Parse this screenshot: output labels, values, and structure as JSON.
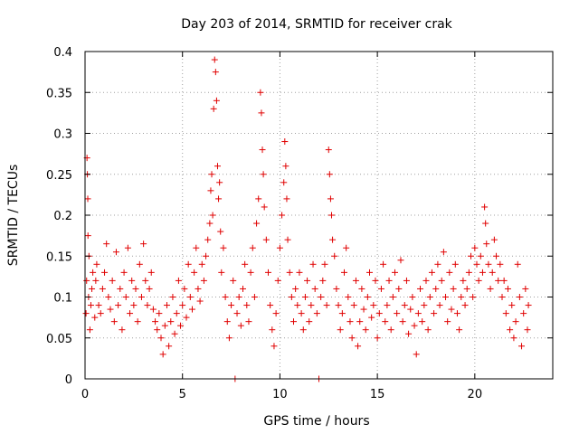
{
  "chart_data": {
    "type": "scatter",
    "title": "Day 203 of 2014, SRMTID for receiver crak",
    "xlabel": "GPS time / hours",
    "ylabel": "SRMTID / TECUs",
    "xlim": [
      0,
      24
    ],
    "ylim": [
      0,
      0.4
    ],
    "xticks": [
      0,
      5,
      10,
      15,
      20
    ],
    "yticks": [
      0,
      0.05,
      0.1,
      0.15,
      0.2,
      0.25,
      0.3,
      0.35,
      0.4
    ],
    "xtick_labels": [
      "0",
      "5",
      "10",
      "15",
      "20"
    ],
    "ytick_labels": [
      "0",
      "0.05",
      "0.1",
      "0.15",
      "0.2",
      "0.25",
      "0.3",
      "0.35",
      "0.4"
    ],
    "grid": true,
    "marker": "+",
    "color": "#e00000",
    "series": [
      {
        "name": "SRMTID",
        "points": [
          [
            0.05,
            0.08
          ],
          [
            0.08,
            0.12
          ],
          [
            0.1,
            0.27
          ],
          [
            0.12,
            0.25
          ],
          [
            0.14,
            0.22
          ],
          [
            0.15,
            0.175
          ],
          [
            0.18,
            0.1
          ],
          [
            0.2,
            0.15
          ],
          [
            0.25,
            0.06
          ],
          [
            0.3,
            0.09
          ],
          [
            0.35,
            0.11
          ],
          [
            0.4,
            0.13
          ],
          [
            0.5,
            0.075
          ],
          [
            0.55,
            0.12
          ],
          [
            0.6,
            0.14
          ],
          [
            0.7,
            0.09
          ],
          [
            0.8,
            0.08
          ],
          [
            0.9,
            0.11
          ],
          [
            1.0,
            0.13
          ],
          [
            1.1,
            0.165
          ],
          [
            1.2,
            0.1
          ],
          [
            1.3,
            0.085
          ],
          [
            1.4,
            0.12
          ],
          [
            1.5,
            0.07
          ],
          [
            1.6,
            0.155
          ],
          [
            1.7,
            0.09
          ],
          [
            1.8,
            0.11
          ],
          [
            1.9,
            0.06
          ],
          [
            2.0,
            0.13
          ],
          [
            2.1,
            0.1
          ],
          [
            2.2,
            0.16
          ],
          [
            2.3,
            0.08
          ],
          [
            2.4,
            0.12
          ],
          [
            2.5,
            0.09
          ],
          [
            2.6,
            0.11
          ],
          [
            2.7,
            0.07
          ],
          [
            2.8,
            0.14
          ],
          [
            2.9,
            0.1
          ],
          [
            3.0,
            0.165
          ],
          [
            3.1,
            0.12
          ],
          [
            3.2,
            0.09
          ],
          [
            3.3,
            0.11
          ],
          [
            3.4,
            0.13
          ],
          [
            3.5,
            0.085
          ],
          [
            3.6,
            0.07
          ],
          [
            3.7,
            0.06
          ],
          [
            3.8,
            0.08
          ],
          [
            3.9,
            0.05
          ],
          [
            4.0,
            0.03
          ],
          [
            4.1,
            0.065
          ],
          [
            4.2,
            0.09
          ],
          [
            4.3,
            0.04
          ],
          [
            4.4,
            0.07
          ],
          [
            4.5,
            0.1
          ],
          [
            4.6,
            0.055
          ],
          [
            4.7,
            0.08
          ],
          [
            4.8,
            0.12
          ],
          [
            4.9,
            0.065
          ],
          [
            5.0,
            0.09
          ],
          [
            5.1,
            0.11
          ],
          [
            5.2,
            0.075
          ],
          [
            5.3,
            0.14
          ],
          [
            5.4,
            0.1
          ],
          [
            5.5,
            0.085
          ],
          [
            5.6,
            0.13
          ],
          [
            5.7,
            0.16
          ],
          [
            5.8,
            0.11
          ],
          [
            5.9,
            0.095
          ],
          [
            6.0,
            0.14
          ],
          [
            6.1,
            0.12
          ],
          [
            6.2,
            0.15
          ],
          [
            6.3,
            0.17
          ],
          [
            6.4,
            0.19
          ],
          [
            6.45,
            0.23
          ],
          [
            6.5,
            0.25
          ],
          [
            6.55,
            0.2
          ],
          [
            6.6,
            0.33
          ],
          [
            6.65,
            0.39
          ],
          [
            6.7,
            0.375
          ],
          [
            6.75,
            0.34
          ],
          [
            6.8,
            0.26
          ],
          [
            6.85,
            0.22
          ],
          [
            6.9,
            0.24
          ],
          [
            6.95,
            0.18
          ],
          [
            7.0,
            0.13
          ],
          [
            7.1,
            0.16
          ],
          [
            7.2,
            0.1
          ],
          [
            7.3,
            0.07
          ],
          [
            7.4,
            0.05
          ],
          [
            7.5,
            0.09
          ],
          [
            7.6,
            0.12
          ],
          [
            7.7,
            0.0
          ],
          [
            7.8,
            0.08
          ],
          [
            7.9,
            0.1
          ],
          [
            8.0,
            0.065
          ],
          [
            8.1,
            0.11
          ],
          [
            8.2,
            0.14
          ],
          [
            8.3,
            0.09
          ],
          [
            8.4,
            0.07
          ],
          [
            8.5,
            0.13
          ],
          [
            8.6,
            0.16
          ],
          [
            8.7,
            0.1
          ],
          [
            8.8,
            0.19
          ],
          [
            8.9,
            0.22
          ],
          [
            9.0,
            0.35
          ],
          [
            9.05,
            0.325
          ],
          [
            9.1,
            0.28
          ],
          [
            9.15,
            0.25
          ],
          [
            9.2,
            0.21
          ],
          [
            9.3,
            0.17
          ],
          [
            9.4,
            0.13
          ],
          [
            9.5,
            0.09
          ],
          [
            9.6,
            0.06
          ],
          [
            9.7,
            0.04
          ],
          [
            9.8,
            0.08
          ],
          [
            9.9,
            0.12
          ],
          [
            10.0,
            0.16
          ],
          [
            10.1,
            0.2
          ],
          [
            10.2,
            0.24
          ],
          [
            10.25,
            0.29
          ],
          [
            10.3,
            0.26
          ],
          [
            10.35,
            0.22
          ],
          [
            10.4,
            0.17
          ],
          [
            10.5,
            0.13
          ],
          [
            10.6,
            0.1
          ],
          [
            10.7,
            0.07
          ],
          [
            10.8,
            0.11
          ],
          [
            10.9,
            0.09
          ],
          [
            11.0,
            0.13
          ],
          [
            11.1,
            0.08
          ],
          [
            11.2,
            0.06
          ],
          [
            11.3,
            0.1
          ],
          [
            11.4,
            0.12
          ],
          [
            11.5,
            0.07
          ],
          [
            11.6,
            0.09
          ],
          [
            11.7,
            0.14
          ],
          [
            11.8,
            0.11
          ],
          [
            11.9,
            0.08
          ],
          [
            12.0,
            0.0
          ],
          [
            12.1,
            0.1
          ],
          [
            12.2,
            0.12
          ],
          [
            12.3,
            0.14
          ],
          [
            12.4,
            0.09
          ],
          [
            12.5,
            0.28
          ],
          [
            12.55,
            0.25
          ],
          [
            12.6,
            0.22
          ],
          [
            12.65,
            0.2
          ],
          [
            12.7,
            0.17
          ],
          [
            12.8,
            0.15
          ],
          [
            12.9,
            0.11
          ],
          [
            13.0,
            0.09
          ],
          [
            13.1,
            0.06
          ],
          [
            13.2,
            0.08
          ],
          [
            13.3,
            0.13
          ],
          [
            13.4,
            0.16
          ],
          [
            13.5,
            0.1
          ],
          [
            13.6,
            0.07
          ],
          [
            13.7,
            0.05
          ],
          [
            13.8,
            0.09
          ],
          [
            13.9,
            0.12
          ],
          [
            14.0,
            0.04
          ],
          [
            14.1,
            0.07
          ],
          [
            14.2,
            0.11
          ],
          [
            14.3,
            0.085
          ],
          [
            14.4,
            0.06
          ],
          [
            14.5,
            0.1
          ],
          [
            14.6,
            0.13
          ],
          [
            14.7,
            0.075
          ],
          [
            14.8,
            0.09
          ],
          [
            14.9,
            0.12
          ],
          [
            15.0,
            0.05
          ],
          [
            15.1,
            0.08
          ],
          [
            15.2,
            0.11
          ],
          [
            15.3,
            0.14
          ],
          [
            15.4,
            0.07
          ],
          [
            15.5,
            0.09
          ],
          [
            15.6,
            0.12
          ],
          [
            15.7,
            0.06
          ],
          [
            15.8,
            0.1
          ],
          [
            15.9,
            0.13
          ],
          [
            16.0,
            0.08
          ],
          [
            16.1,
            0.11
          ],
          [
            16.2,
            0.145
          ],
          [
            16.3,
            0.07
          ],
          [
            16.4,
            0.09
          ],
          [
            16.5,
            0.12
          ],
          [
            16.6,
            0.055
          ],
          [
            16.7,
            0.085
          ],
          [
            16.8,
            0.1
          ],
          [
            16.9,
            0.065
          ],
          [
            17.0,
            0.03
          ],
          [
            17.1,
            0.08
          ],
          [
            17.2,
            0.11
          ],
          [
            17.3,
            0.07
          ],
          [
            17.4,
            0.09
          ],
          [
            17.5,
            0.12
          ],
          [
            17.6,
            0.06
          ],
          [
            17.7,
            0.1
          ],
          [
            17.8,
            0.13
          ],
          [
            17.9,
            0.08
          ],
          [
            18.0,
            0.11
          ],
          [
            18.1,
            0.14
          ],
          [
            18.2,
            0.09
          ],
          [
            18.3,
            0.12
          ],
          [
            18.4,
            0.155
          ],
          [
            18.5,
            0.1
          ],
          [
            18.6,
            0.07
          ],
          [
            18.7,
            0.13
          ],
          [
            18.8,
            0.085
          ],
          [
            18.9,
            0.11
          ],
          [
            19.0,
            0.14
          ],
          [
            19.1,
            0.08
          ],
          [
            19.2,
            0.06
          ],
          [
            19.3,
            0.1
          ],
          [
            19.4,
            0.12
          ],
          [
            19.5,
            0.09
          ],
          [
            19.6,
            0.11
          ],
          [
            19.7,
            0.13
          ],
          [
            19.8,
            0.15
          ],
          [
            19.9,
            0.1
          ],
          [
            20.0,
            0.16
          ],
          [
            20.1,
            0.14
          ],
          [
            20.2,
            0.12
          ],
          [
            20.3,
            0.15
          ],
          [
            20.4,
            0.13
          ],
          [
            20.5,
            0.21
          ],
          [
            20.55,
            0.19
          ],
          [
            20.6,
            0.165
          ],
          [
            20.7,
            0.14
          ],
          [
            20.8,
            0.11
          ],
          [
            20.9,
            0.13
          ],
          [
            21.0,
            0.17
          ],
          [
            21.1,
            0.15
          ],
          [
            21.2,
            0.12
          ],
          [
            21.3,
            0.14
          ],
          [
            21.4,
            0.1
          ],
          [
            21.5,
            0.12
          ],
          [
            21.6,
            0.08
          ],
          [
            21.7,
            0.11
          ],
          [
            21.8,
            0.06
          ],
          [
            21.9,
            0.09
          ],
          [
            22.0,
            0.05
          ],
          [
            22.1,
            0.07
          ],
          [
            22.2,
            0.14
          ],
          [
            22.3,
            0.1
          ],
          [
            22.4,
            0.04
          ],
          [
            22.5,
            0.08
          ],
          [
            22.6,
            0.11
          ],
          [
            22.7,
            0.06
          ],
          [
            22.75,
            0.09
          ]
        ]
      }
    ]
  }
}
